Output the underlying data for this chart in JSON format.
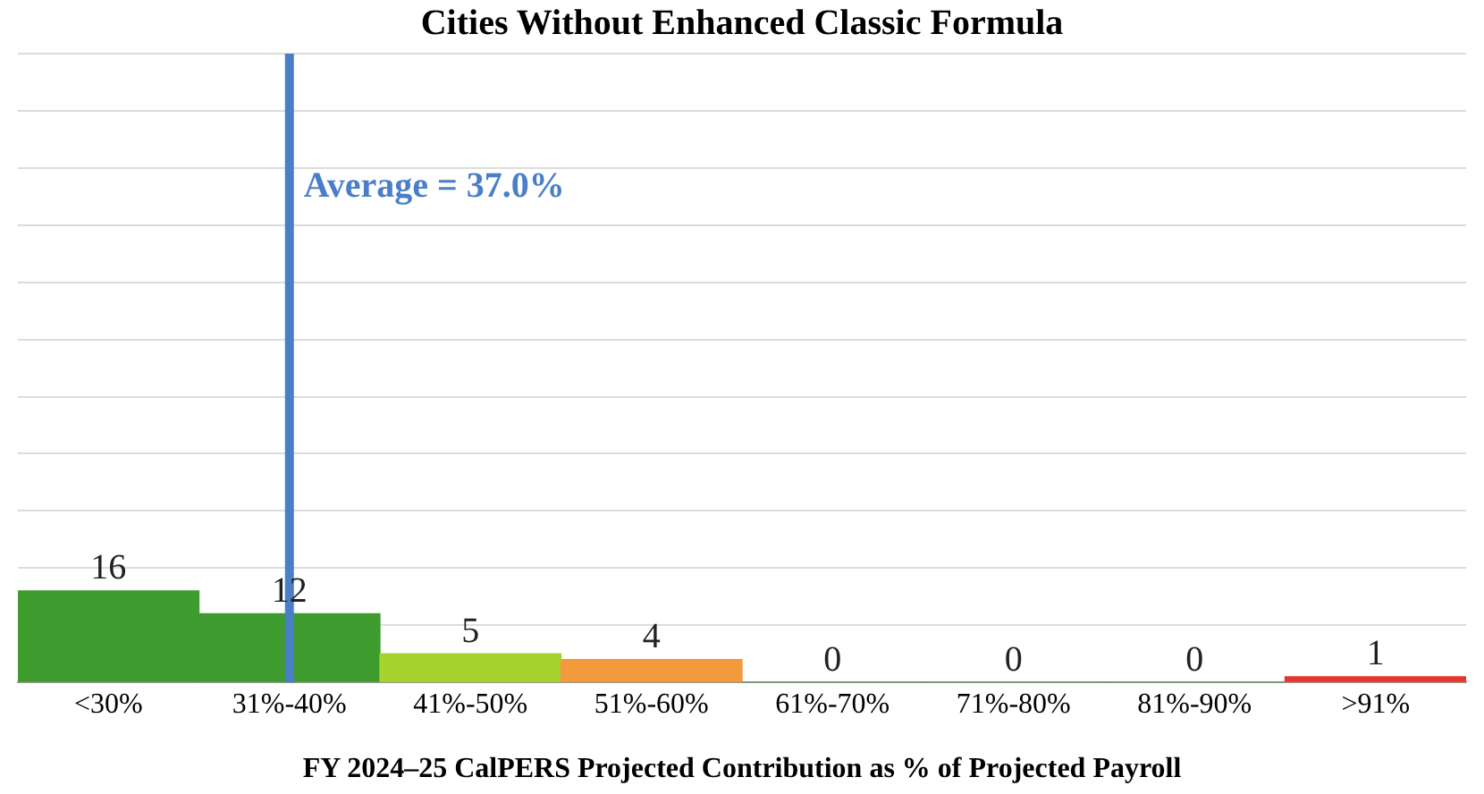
{
  "chart_data": {
    "type": "bar",
    "title": "Cities Without Enhanced Classic Formula",
    "xlabel": "FY 2024–25 CalPERS Projected Contribution as % of Projected Payroll",
    "categories": [
      "<30%",
      "31%-40%",
      "41%-50%",
      "51%-60%",
      "61%-70%",
      "71%-80%",
      "81%-90%",
      ">91%"
    ],
    "values": [
      16,
      12,
      5,
      4,
      0,
      0,
      0,
      1
    ],
    "colors": [
      "#3e9b2e",
      "#3e9b2e",
      "#a6d32c",
      "#f29a3c",
      "#3e9b2e",
      "#3e9b2e",
      "#3e9b2e",
      "#e8352b"
    ],
    "ylim": [
      0,
      110
    ],
    "yticks": [
      0,
      10,
      20,
      30,
      40,
      50,
      60,
      70,
      80,
      90,
      100,
      110
    ],
    "tick_labels": "x",
    "grid": "y",
    "data_labels": true,
    "ref_lines": [
      {
        "axis": "x",
        "value": "31%-40%",
        "label": "Average = 37.0%",
        "color": "#4a7fc8"
      }
    ]
  }
}
